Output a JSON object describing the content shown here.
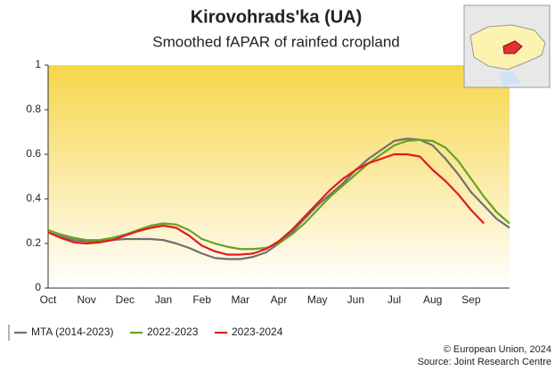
{
  "chart_data": {
    "type": "line",
    "title": "Kirovohrads'ka (UA)",
    "subtitle": "Smoothed fAPAR of rainfed cropland",
    "categories": [
      "Oct",
      null,
      null,
      "Nov",
      null,
      null,
      "Dec",
      null,
      null,
      "Jan",
      null,
      null,
      "Feb",
      null,
      null,
      "Mar",
      null,
      null,
      "Apr",
      null,
      null,
      "May",
      null,
      null,
      "Jun",
      null,
      null,
      "Jul",
      null,
      null,
      "Aug",
      null,
      null,
      "Sep",
      null,
      null,
      null
    ],
    "ylim": [
      0,
      1
    ],
    "yticks": [
      0,
      0.2,
      0.4,
      0.6,
      0.8,
      1
    ],
    "series": [
      {
        "name": "MTA (2014-2023)",
        "color": "#707070",
        "values": [
          0.25,
          0.23,
          0.215,
          0.21,
          0.21,
          0.215,
          0.22,
          0.22,
          0.22,
          0.215,
          0.2,
          0.18,
          0.155,
          0.135,
          0.13,
          0.13,
          0.14,
          0.16,
          0.2,
          0.25,
          0.31,
          0.37,
          0.42,
          0.47,
          0.53,
          0.58,
          0.62,
          0.66,
          0.67,
          0.665,
          0.64,
          0.58,
          0.51,
          0.43,
          0.37,
          0.31,
          0.27
        ]
      },
      {
        "name": "2022-2023",
        "color": "#6aa121",
        "values": [
          0.26,
          0.24,
          0.225,
          0.215,
          0.215,
          0.225,
          0.24,
          0.26,
          0.28,
          0.29,
          0.285,
          0.26,
          0.22,
          0.2,
          0.185,
          0.175,
          0.175,
          0.18,
          0.2,
          0.24,
          0.29,
          0.35,
          0.41,
          0.46,
          0.51,
          0.56,
          0.6,
          0.64,
          0.66,
          0.665,
          0.66,
          0.63,
          0.57,
          0.49,
          0.41,
          0.34,
          0.29
        ]
      },
      {
        "name": "2023-2024",
        "color": "#e31a1c",
        "values": [
          0.25,
          0.225,
          0.205,
          0.2,
          0.205,
          0.215,
          0.235,
          0.255,
          0.27,
          0.28,
          0.27,
          0.235,
          0.19,
          0.165,
          0.15,
          0.15,
          0.155,
          0.175,
          0.21,
          0.26,
          0.32,
          0.38,
          0.44,
          0.49,
          0.53,
          0.56,
          0.58,
          0.6,
          0.6,
          0.59,
          0.53,
          0.48,
          0.42,
          0.35,
          0.29,
          null,
          null
        ]
      }
    ],
    "credits": [
      "© European Union, 2024",
      "Source: Joint Research Centre"
    ]
  }
}
